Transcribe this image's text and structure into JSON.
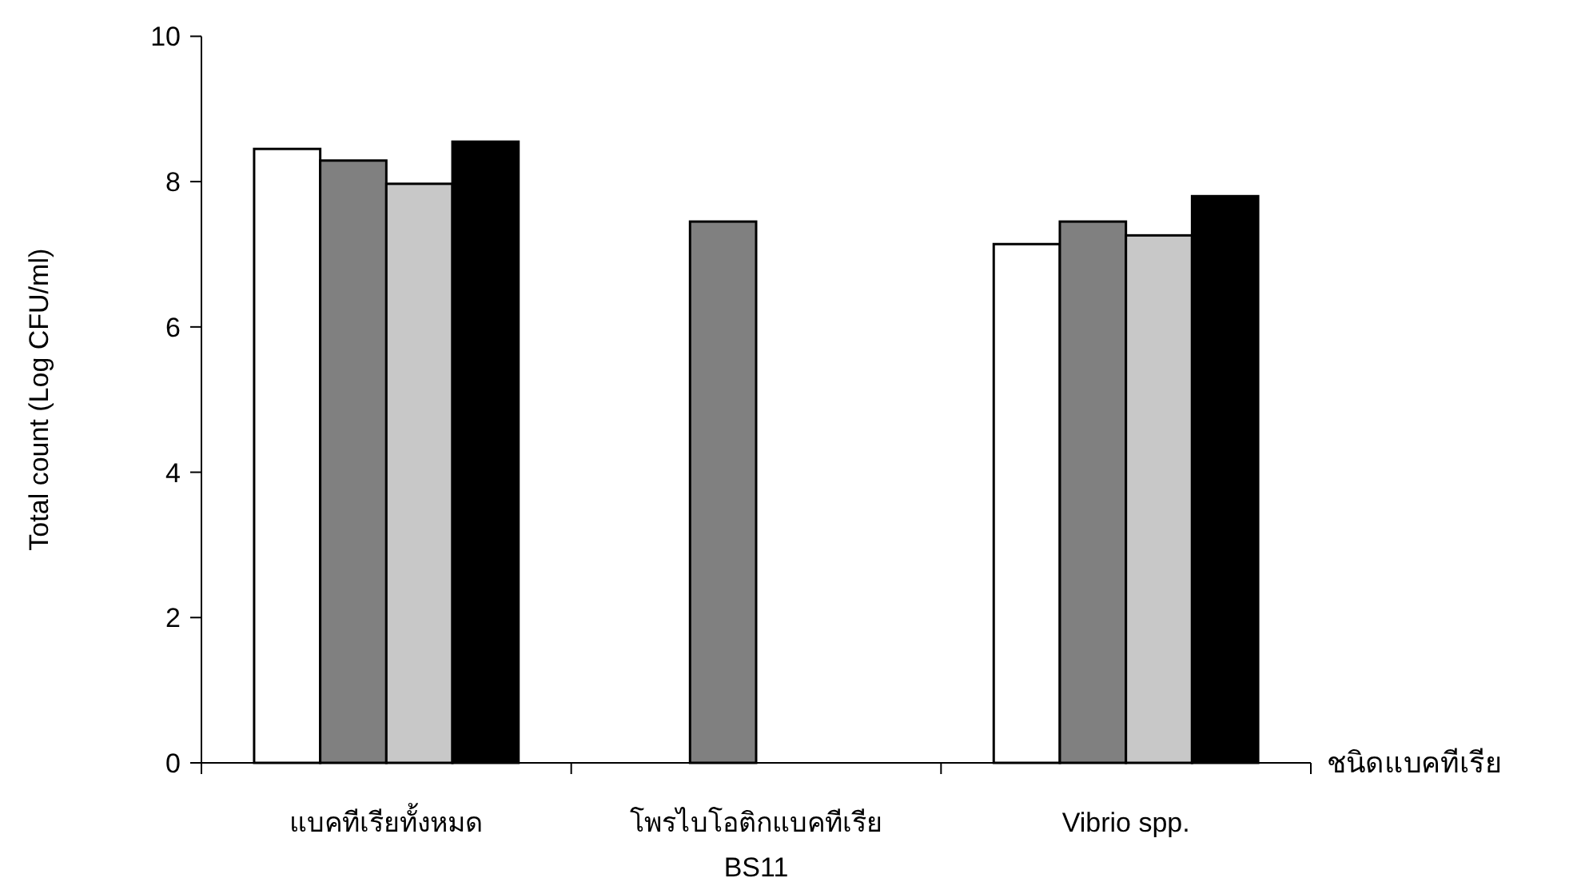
{
  "chart_data": {
    "type": "bar",
    "ylabel": "Total count (Log CFU/ml)",
    "xlabel": "ชนิดแบคทีเรีย",
    "categories": [
      "แบคทีเรียทั้งหมด",
      "โพรไบโอติกแบคทีเรีย\nBS11",
      "Vibrio spp."
    ],
    "series": [
      {
        "color": "#ffffff",
        "values": [
          8.45,
          null,
          7.14
        ]
      },
      {
        "color": "#808080",
        "values": [
          8.29,
          7.45,
          7.45
        ]
      },
      {
        "color": "#c8c8c8",
        "values": [
          7.97,
          null,
          7.26
        ]
      },
      {
        "color": "#000000",
        "values": [
          8.55,
          null,
          7.8
        ]
      }
    ],
    "ylim": [
      0,
      10
    ],
    "yticks": [
      0,
      2,
      4,
      6,
      8,
      10
    ],
    "grid": false
  }
}
